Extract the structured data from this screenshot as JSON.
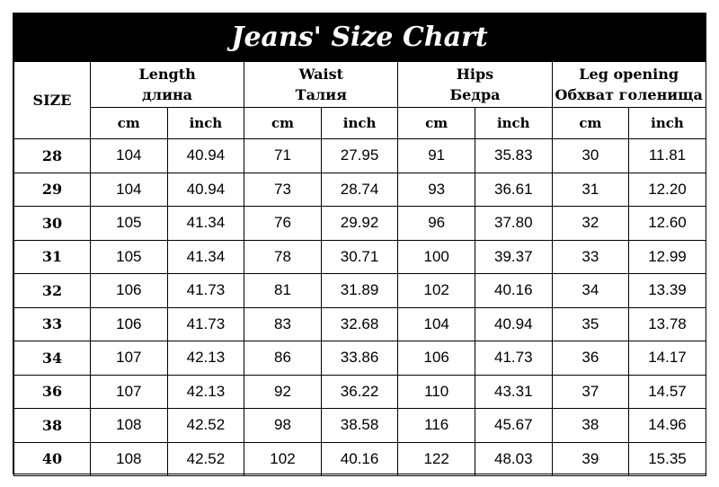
{
  "title": "Jeans' Size Chart",
  "size_header": "SIZE",
  "groups": [
    {
      "en": "Length",
      "ru": "длина"
    },
    {
      "en": "Waist",
      "ru": "Талия"
    },
    {
      "en": "Hips",
      "ru": "Бедра"
    },
    {
      "en": "Leg opening",
      "ru": "Обхват голенища"
    }
  ],
  "units": [
    "cm",
    "inch",
    "cm",
    "inch",
    "cm",
    "inch",
    "cm",
    "inch"
  ],
  "rows": [
    {
      "size": "28",
      "values": [
        "104",
        "40.94",
        "71",
        "27.95",
        "91",
        "35.83",
        "30",
        "11.81"
      ]
    },
    {
      "size": "29",
      "values": [
        "104",
        "40.94",
        "73",
        "28.74",
        "93",
        "36.61",
        "31",
        "12.20"
      ]
    },
    {
      "size": "30",
      "values": [
        "105",
        "41.34",
        "76",
        "29.92",
        "96",
        "37.80",
        "32",
        "12.60"
      ]
    },
    {
      "size": "31",
      "values": [
        "105",
        "41.34",
        "78",
        "30.71",
        "100",
        "39.37",
        "33",
        "12.99"
      ]
    },
    {
      "size": "32",
      "values": [
        "106",
        "41.73",
        "81",
        "31.89",
        "102",
        "40.16",
        "34",
        "13.39"
      ]
    },
    {
      "size": "33",
      "values": [
        "106",
        "41.73",
        "83",
        "32.68",
        "104",
        "40.94",
        "35",
        "13.78"
      ]
    },
    {
      "size": "34",
      "values": [
        "107",
        "42.13",
        "86",
        "33.86",
        "106",
        "41.73",
        "36",
        "14.17"
      ]
    },
    {
      "size": "36",
      "values": [
        "107",
        "42.13",
        "92",
        "36.22",
        "110",
        "43.31",
        "37",
        "14.57"
      ]
    },
    {
      "size": "38",
      "values": [
        "108",
        "42.52",
        "98",
        "38.58",
        "116",
        "45.67",
        "38",
        "14.96"
      ]
    },
    {
      "size": "40",
      "values": [
        "108",
        "42.52",
        "102",
        "40.16",
        "122",
        "48.03",
        "39",
        "15.35"
      ]
    }
  ]
}
